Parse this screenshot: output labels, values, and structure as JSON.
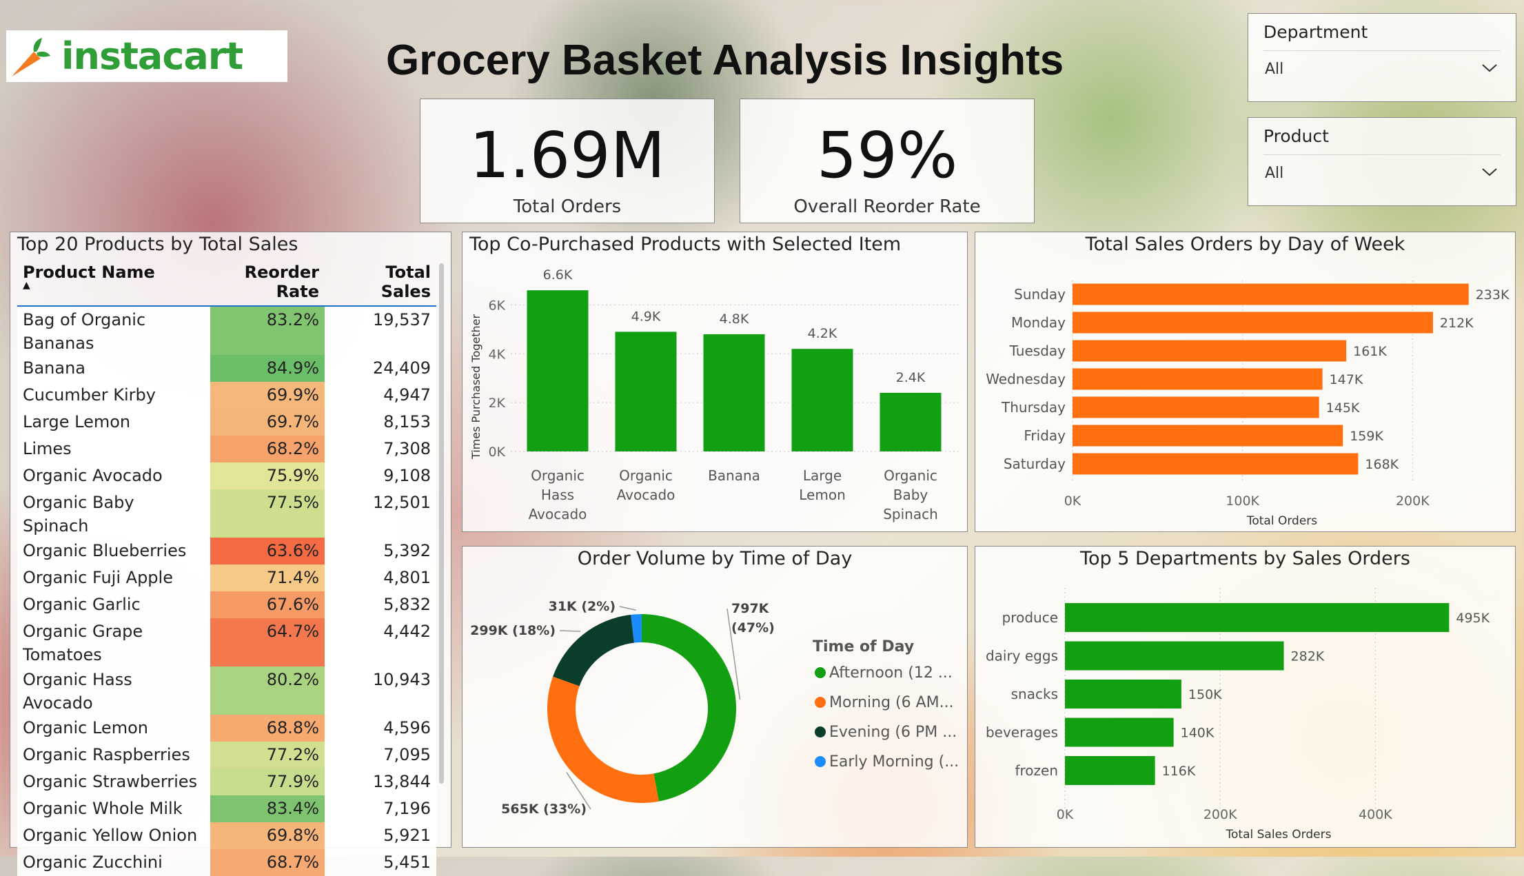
{
  "brand": {
    "name": "instacart",
    "accent": "#2f9e37",
    "carrot": "#f47b20"
  },
  "header": {
    "title": "Grocery Basket Analysis Insights"
  },
  "kpis": [
    {
      "value": "1.69M",
      "label": "Total Orders"
    },
    {
      "value": "59%",
      "label": "Overall Reorder Rate"
    }
  ],
  "slicers": [
    {
      "title": "Department",
      "value": "All"
    },
    {
      "title": "Product",
      "value": "All"
    }
  ],
  "colors": {
    "green": "#12a012",
    "orange": "#ff6f0f",
    "dark": "#0a3d2a",
    "blue": "#1a8cff"
  },
  "table": {
    "title": "Top 20 Products by Total Sales",
    "columns": [
      "Product Name",
      "Reorder Rate",
      "Total Sales"
    ],
    "rows": [
      {
        "name": "Bag of Organic Bananas",
        "rate": "83.2%",
        "rate_value": 83.2,
        "sales": "19,537"
      },
      {
        "name": "Banana",
        "rate": "84.9%",
        "rate_value": 84.9,
        "sales": "24,409"
      },
      {
        "name": "Cucumber Kirby",
        "rate": "69.9%",
        "rate_value": 69.9,
        "sales": "4,947"
      },
      {
        "name": "Large Lemon",
        "rate": "69.7%",
        "rate_value": 69.7,
        "sales": "8,153"
      },
      {
        "name": "Limes",
        "rate": "68.2%",
        "rate_value": 68.2,
        "sales": "7,308"
      },
      {
        "name": "Organic Avocado",
        "rate": "75.9%",
        "rate_value": 75.9,
        "sales": "9,108"
      },
      {
        "name": "Organic Baby Spinach",
        "rate": "77.5%",
        "rate_value": 77.5,
        "sales": "12,501"
      },
      {
        "name": "Organic Blueberries",
        "rate": "63.6%",
        "rate_value": 63.6,
        "sales": "5,392"
      },
      {
        "name": "Organic Fuji Apple",
        "rate": "71.4%",
        "rate_value": 71.4,
        "sales": "4,801"
      },
      {
        "name": "Organic Garlic",
        "rate": "67.6%",
        "rate_value": 67.6,
        "sales": "5,832"
      },
      {
        "name": "Organic Grape Tomatoes",
        "rate": "64.7%",
        "rate_value": 64.7,
        "sales": "4,442"
      },
      {
        "name": "Organic Hass Avocado",
        "rate": "80.2%",
        "rate_value": 80.2,
        "sales": "10,943"
      },
      {
        "name": "Organic Lemon",
        "rate": "68.8%",
        "rate_value": 68.8,
        "sales": "4,596"
      },
      {
        "name": "Organic Raspberries",
        "rate": "77.2%",
        "rate_value": 77.2,
        "sales": "7,095"
      },
      {
        "name": "Organic Strawberries",
        "rate": "77.9%",
        "rate_value": 77.9,
        "sales": "13,844"
      },
      {
        "name": "Organic Whole Milk",
        "rate": "83.4%",
        "rate_value": 83.4,
        "sales": "7,196"
      },
      {
        "name": "Organic Yellow Onion",
        "rate": "69.8%",
        "rate_value": 69.8,
        "sales": "5,921"
      },
      {
        "name": "Organic Zucchini",
        "rate": "68.7%",
        "rate_value": 68.7,
        "sales": "5,451"
      }
    ]
  },
  "chart_data": [
    {
      "type": "bar",
      "title": "Top Co-Purchased Products with Selected Item",
      "categories": [
        [
          "Organic",
          "Hass",
          "Avocado"
        ],
        [
          "Organic",
          "Avocado"
        ],
        [
          "Banana"
        ],
        [
          "Large",
          "Lemon"
        ],
        [
          "Organic",
          "Baby",
          "Spinach"
        ]
      ],
      "values": [
        6600,
        4900,
        4800,
        4200,
        2400
      ],
      "data_labels": [
        "6.6K",
        "4.9K",
        "4.8K",
        "4.2K",
        "2.4K"
      ],
      "ylabel": "Times Purchased Together",
      "yticks": [
        0,
        2000,
        4000,
        6000
      ],
      "ytick_labels": [
        "0K",
        "2K",
        "4K",
        "6K"
      ],
      "ylim": [
        0,
        7000
      ],
      "grid": true
    },
    {
      "type": "bar",
      "orientation": "horizontal",
      "title": "Total Sales Orders by Day of Week",
      "categories": [
        "Sunday",
        "Monday",
        "Tuesday",
        "Wednesday",
        "Thursday",
        "Friday",
        "Saturday"
      ],
      "values": [
        233000,
        212000,
        161000,
        147000,
        145000,
        159000,
        168000
      ],
      "data_labels": [
        "233K",
        "212K",
        "161K",
        "147K",
        "145K",
        "159K",
        "168K"
      ],
      "xlabel": "Total Orders",
      "xticks": [
        0,
        100000,
        200000
      ],
      "xtick_labels": [
        "0K",
        "100K",
        "200K"
      ],
      "xlim": [
        0,
        240000
      ],
      "grid": true
    },
    {
      "type": "pie",
      "donut": true,
      "title": "Order Volume by Time of Day",
      "legend_title": "Time of Day",
      "legend": [
        "Afternoon (12 ...",
        "Morning (6 AM...",
        "Evening (6 PM ...",
        "Early Morning (..."
      ],
      "values": [
        797000,
        565000,
        299000,
        31000
      ],
      "data_labels": [
        [
          "797K",
          "(47%)"
        ],
        [
          "565K (33%)"
        ],
        [
          "299K (18%)"
        ],
        [
          "31K (2%)"
        ]
      ]
    },
    {
      "type": "bar",
      "orientation": "horizontal",
      "title": "Top 5 Departments by Sales Orders",
      "categories": [
        "produce",
        "dairy eggs",
        "snacks",
        "beverages",
        "frozen"
      ],
      "values": [
        495000,
        282000,
        150000,
        140000,
        116000
      ],
      "data_labels": [
        "495K",
        "282K",
        "150K",
        "140K",
        "116K"
      ],
      "xlabel": "Total Sales Orders",
      "xticks": [
        0,
        200000,
        400000
      ],
      "xtick_labels": [
        "0K",
        "200K",
        "400K"
      ],
      "xlim": [
        0,
        500000
      ],
      "grid": true
    }
  ]
}
